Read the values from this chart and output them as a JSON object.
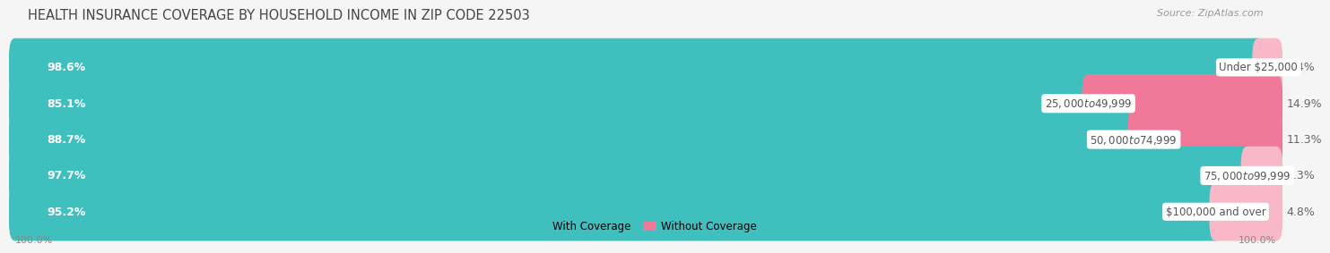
{
  "title": "HEALTH INSURANCE COVERAGE BY HOUSEHOLD INCOME IN ZIP CODE 22503",
  "source": "Source: ZipAtlas.com",
  "categories": [
    "Under $25,000",
    "$25,000 to $49,999",
    "$50,000 to $74,999",
    "$75,000 to $99,999",
    "$100,000 and over"
  ],
  "with_coverage": [
    98.6,
    85.1,
    88.7,
    97.7,
    95.2
  ],
  "without_coverage": [
    1.4,
    14.9,
    11.3,
    2.3,
    4.8
  ],
  "color_with": "#40bfbf",
  "color_without": "#f07898",
  "color_without_light": "#f8b8c8",
  "row_bg_even": "#f0f2f4",
  "row_bg_odd": "#fafafa",
  "axis_label_left": "100.0%",
  "axis_label_right": "100.0%",
  "legend_with": "With Coverage",
  "legend_without": "Without Coverage",
  "title_fontsize": 10.5,
  "source_fontsize": 8,
  "bar_label_fontsize": 9,
  "category_fontsize": 8.5,
  "pct_fontsize": 9,
  "axis_fontsize": 8
}
